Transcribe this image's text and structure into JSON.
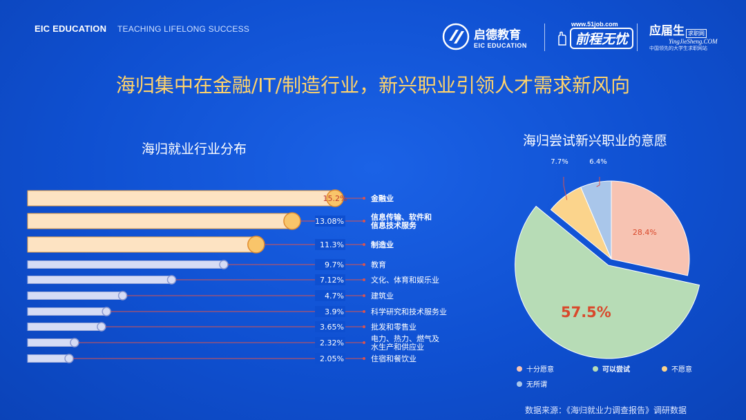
{
  "header": {
    "brand": "EIC EDUCATION",
    "slogan": "TEACHING LIFELONG SUCCESS",
    "logo1_cn": "启德教育",
    "logo1_en": "EIC EDUCATION",
    "logo2_url": "www.51job.com",
    "logo2_cn": "前程无忧",
    "logo3_cn": "应届生",
    "logo3_tag": "求职网",
    "logo3_en": "YingJieSheng.COM",
    "logo3_sub": "中国领先的大学生求职网站"
  },
  "title": "海归集中在金融/IT/制造行业，新兴职业引领人才需求新风向",
  "source": "数据来源：《海归就业力调查报告》调研数据",
  "colors": {
    "bg": "#0e4fd0",
    "title": "#ffd36b",
    "bar_top": "#fde3c2",
    "bar_rest": "#d6dcf5",
    "dot_top": "#f9c56a",
    "leader": "#d9534f",
    "pie_willing_very": "#f7c3b2",
    "pie_willing_try": "#b7dcb6",
    "pie_unwilling": "#fbd48c",
    "pie_indifferent": "#a9c6ea"
  },
  "chart_data": [
    {
      "type": "bar",
      "title": "海归就业行业分布",
      "orientation": "horizontal",
      "categories": [
        "金融业",
        "信息传输、软件和信息技术服务",
        "制造业",
        "教育",
        "文化、体育和娱乐业",
        "建筑业",
        "科学研究和技术服务业",
        "批发和零售业",
        "电力、热力、燃气及水生产和供应业",
        "住宿和餐饮业"
      ],
      "label_lines": [
        [
          "金融业"
        ],
        [
          "信息传输、软件和",
          "信息技术服务"
        ],
        [
          "制造业"
        ],
        [
          "教育"
        ],
        [
          "文化、体育和娱乐业"
        ],
        [
          "建筑业"
        ],
        [
          "科学研究和技术服务业"
        ],
        [
          "批发和零售业"
        ],
        [
          "电力、热力、燃气及",
          "水生产和供应业"
        ],
        [
          "住宿和餐饮业"
        ]
      ],
      "values": [
        15.2,
        13.08,
        11.3,
        9.7,
        7.12,
        4.7,
        3.9,
        3.65,
        2.32,
        2.05
      ],
      "value_labels": [
        "15.2%",
        "13.08%",
        "11.3%",
        "9.7%",
        "7.12%",
        "4.7%",
        "3.9%",
        "3.65%",
        "2.32%",
        "2.05%"
      ],
      "highlight_top": 3,
      "xlim": [
        0,
        15.2
      ]
    },
    {
      "type": "pie",
      "title": "海归尝试新兴职业的意愿",
      "slices": [
        {
          "name": "十分愿意",
          "value": 28.4,
          "label": "28.4%"
        },
        {
          "name": "可以尝试",
          "value": 57.5,
          "label": "57.5%"
        },
        {
          "name": "不愿意",
          "value": 7.7,
          "label": "7.7%"
        },
        {
          "name": "无所谓",
          "value": 6.4,
          "label": "6.4%"
        }
      ],
      "exploded": "可以尝试",
      "legend": "bottom"
    }
  ]
}
